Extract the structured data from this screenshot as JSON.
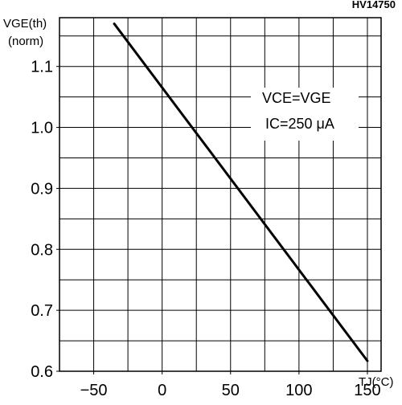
{
  "chart_data": {
    "type": "line",
    "title": "",
    "figure_code": "HV14750",
    "ylabel": "VGE(th)",
    "ylabel_unit": "(norm)",
    "xlabel": "TJ(°C)",
    "xlim": [
      -75,
      160
    ],
    "ylim": [
      0.6,
      1.18
    ],
    "x_ticks": [
      -50,
      0,
      50,
      100,
      150
    ],
    "y_ticks": [
      0.6,
      0.7,
      0.8,
      0.9,
      1.0,
      1.1
    ],
    "x_tick_labels": [
      "−50",
      "0",
      "50",
      "100",
      "150"
    ],
    "y_tick_labels": [
      "0.6",
      "0.7",
      "0.8",
      "0.9",
      "1.0",
      "1.1"
    ],
    "grid": true,
    "legend": "none",
    "annotation": {
      "line1": "VCE=VGE",
      "line2": "IC=250 μA"
    },
    "series": [
      {
        "x": [
          -35,
          150
        ],
        "y": [
          1.17,
          0.617
        ],
        "color": "#000000"
      }
    ]
  }
}
